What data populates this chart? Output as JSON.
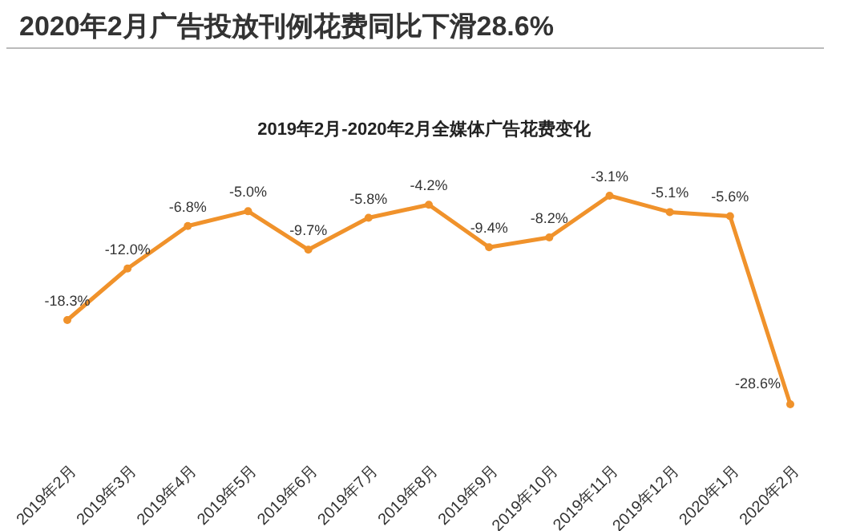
{
  "chart_data": {
    "type": "line",
    "title": "2020年2月广告投放刊例花费同比下滑28.6%",
    "subtitle": "2019年2月-2020年2月全媒体广告花费变化",
    "categories": [
      "2019年2月",
      "2019年3月",
      "2019年4月",
      "2019年5月",
      "2019年6月",
      "2019年7月",
      "2019年8月",
      "2019年9月",
      "2019年10月",
      "2019年11月",
      "2019年12月",
      "2020年1月",
      "2020年2月"
    ],
    "values": [
      -18.3,
      -12.0,
      -6.8,
      -5.0,
      -9.7,
      -5.8,
      -4.2,
      -9.4,
      -8.2,
      -3.1,
      -5.1,
      -5.6,
      -28.6
    ],
    "value_labels": [
      "-18.3%",
      "-12.0%",
      "-6.8%",
      "-5.0%",
      "-9.7%",
      "-5.8%",
      "-4.2%",
      "-9.4%",
      "-8.2%",
      "-3.1%",
      "-5.1%",
      "-5.6%",
      "-28.6%"
    ],
    "color": "#f0922b",
    "marker": "circle",
    "grid": false,
    "legend": false
  }
}
